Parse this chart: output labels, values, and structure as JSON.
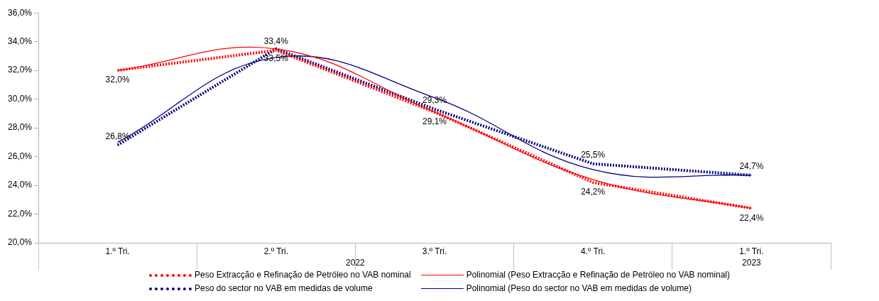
{
  "chart_data": {
    "type": "line",
    "categories": [
      "1.º Tri.",
      "2.º Tri.",
      "3.º Tri.",
      "4.º Tri.",
      "1.º Tri."
    ],
    "annotations": [
      "2022",
      "2023"
    ],
    "ylim": [
      20,
      36
    ],
    "yticks": [
      {
        "value": 20,
        "label": "20,0%"
      },
      {
        "value": 22,
        "label": "22,0%"
      },
      {
        "value": 24,
        "label": "24,0%"
      },
      {
        "value": 26,
        "label": "26,0%"
      },
      {
        "value": 28,
        "label": "28,0%"
      },
      {
        "value": 30,
        "label": "30,0%"
      },
      {
        "value": 32,
        "label": "32,0%"
      },
      {
        "value": 34,
        "label": "34,0%"
      },
      {
        "value": 36,
        "label": "36,0%"
      }
    ],
    "grid": false,
    "legend": "bottom",
    "marker": "none",
    "series": [
      {
        "name": "Peso Extracção e Refinação de Petróleo no VAB nominal",
        "color": "#ff0000",
        "line_style": "dotted",
        "values": [
          32.0,
          33.4,
          29.1,
          24.2,
          22.4
        ],
        "value_labels": [
          "32,0%",
          "33,4%",
          "29,1%",
          "24,2%",
          "22,4%"
        ]
      },
      {
        "name": "Polinomial (Peso Extracção e Refinação de Petróleo no VAB nominal)",
        "color": "#ff0000",
        "line_style": "solid",
        "values": [
          32.0,
          33.5,
          29.1,
          24.4,
          22.4
        ]
      },
      {
        "name": "Peso do sector no VAB em medidas de volume",
        "color": "#000080",
        "line_style": "dotted",
        "values": [
          26.8,
          33.5,
          29.3,
          25.5,
          24.7
        ],
        "value_labels": [
          "26,8%",
          "33,5%",
          "29,3%",
          "25,5%",
          "24,7%"
        ]
      },
      {
        "name": "Polinomial (Peso do sector no VAB em medidas de volume)",
        "color": "#000080",
        "line_style": "solid",
        "values": [
          27.0,
          32.9,
          30.1,
          25.1,
          24.7
        ]
      }
    ]
  }
}
